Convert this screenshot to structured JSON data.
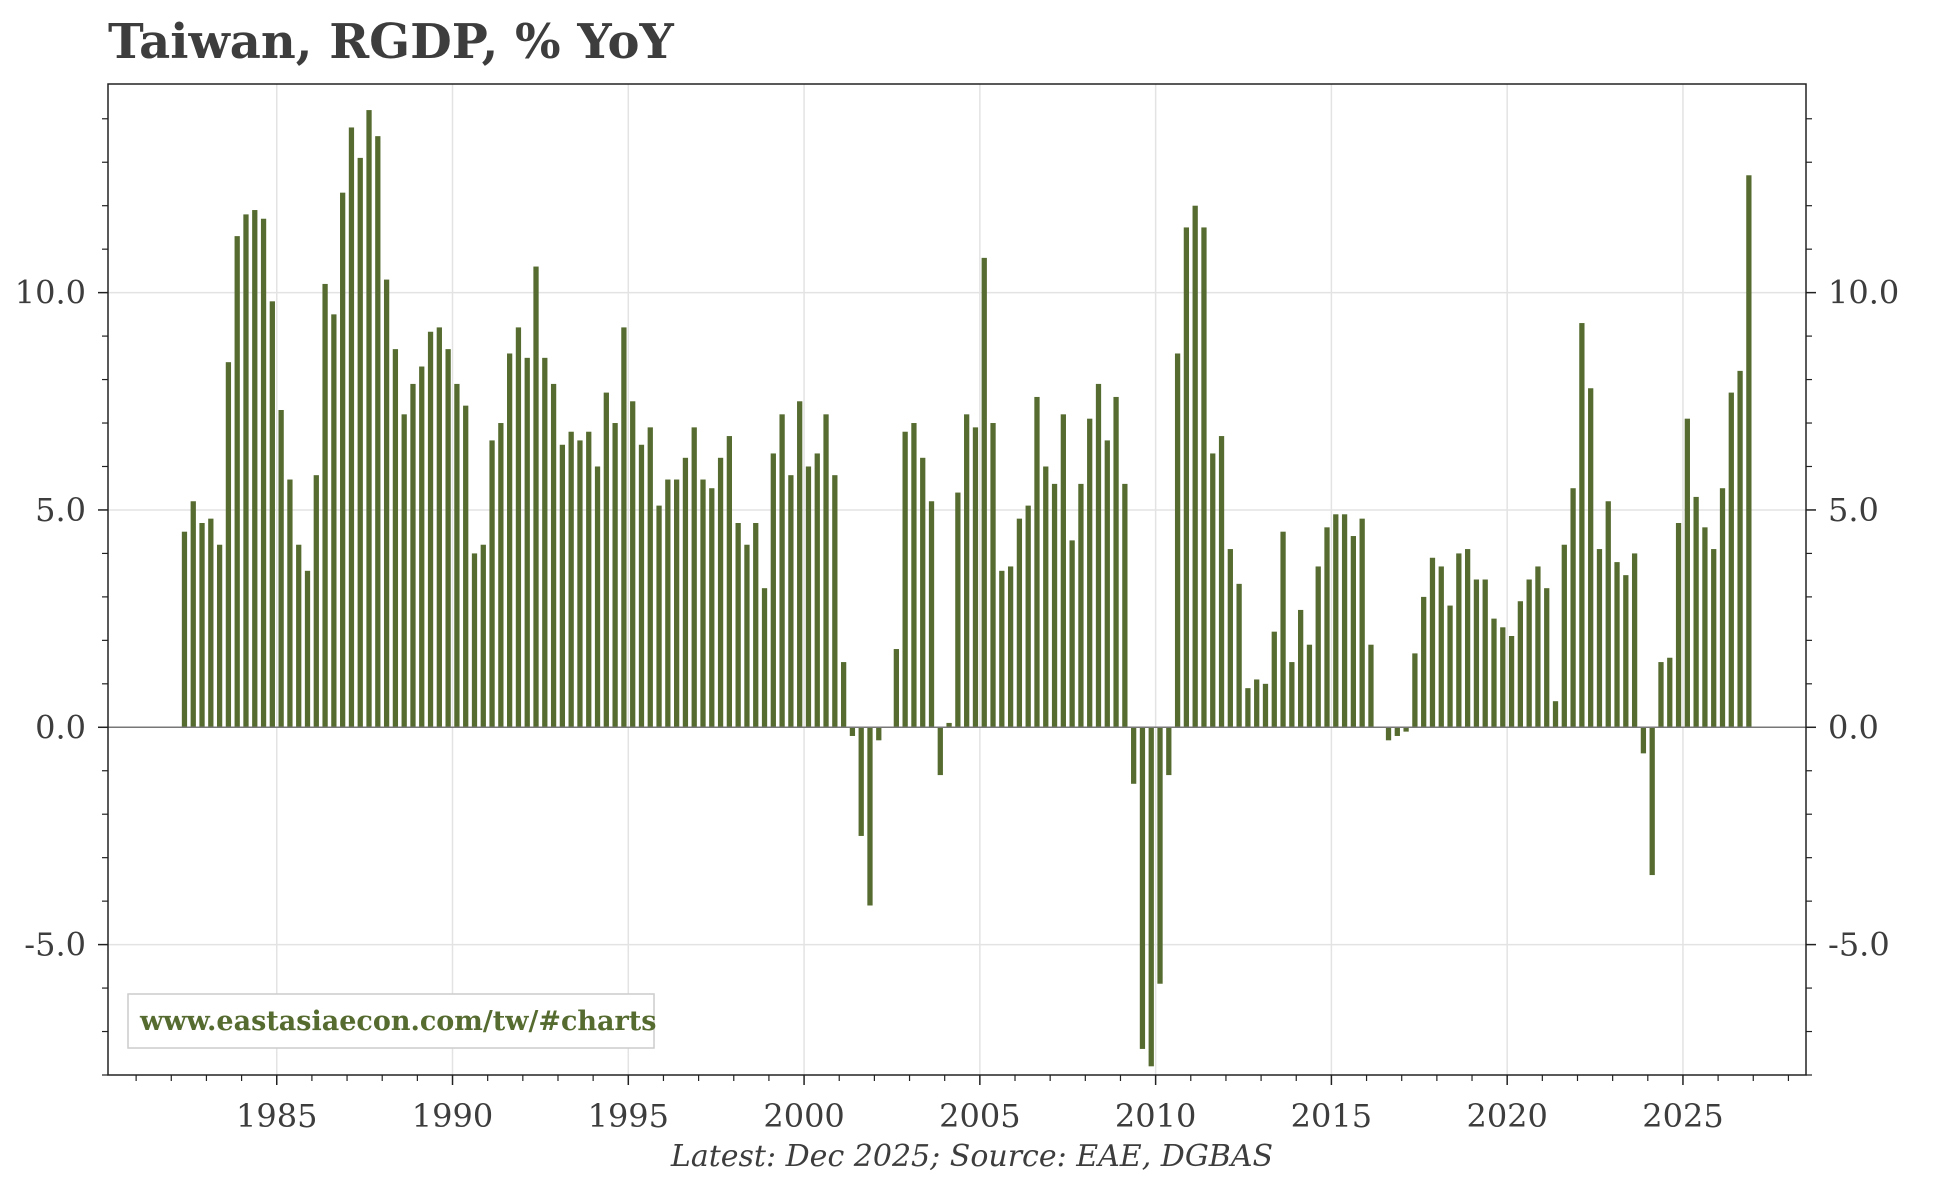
{
  "chart_data": {
    "type": "bar",
    "title": "Taiwan, RGDP, % YoY",
    "footnote": "Latest: Dec 2025; Source: EAE, DGBAS",
    "watermark": "www.eastasiaecon.com/tw/#charts",
    "bar_color": "#556b2f",
    "grid": true,
    "ylim": [
      -8.0,
      14.8
    ],
    "xlim": [
      1980.2,
      2028.5
    ],
    "y_ticks": [
      -5.0,
      0.0,
      5.0,
      10.0
    ],
    "y_tick_labels": [
      "-5.0",
      "0.0",
      "5.0",
      "10.0"
    ],
    "x_ticks": [
      1985,
      1990,
      1995,
      2000,
      2005,
      2010,
      2015,
      2020,
      2025
    ],
    "x_tick_labels": [
      "1985",
      "1990",
      "1995",
      "2000",
      "2005",
      "2010",
      "2015",
      "2020",
      "2025"
    ],
    "series": [
      {
        "name": "RGDP % YoY",
        "start_year": 1982,
        "start_quarter": 2,
        "frequency": "quarterly",
        "values": [
          4.5,
          5.2,
          4.7,
          4.8,
          4.2,
          8.4,
          11.3,
          11.8,
          11.9,
          11.7,
          9.8,
          7.3,
          5.7,
          4.2,
          3.6,
          5.8,
          10.2,
          9.5,
          12.3,
          13.8,
          13.1,
          14.2,
          13.6,
          10.3,
          8.7,
          7.2,
          7.9,
          8.3,
          9.1,
          9.2,
          8.7,
          7.9,
          7.4,
          4.0,
          4.2,
          6.6,
          7.0,
          8.6,
          9.2,
          8.5,
          10.6,
          8.5,
          7.9,
          6.5,
          6.8,
          6.6,
          6.8,
          6.0,
          7.7,
          7.0,
          9.2,
          7.5,
          6.5,
          6.9,
          5.1,
          5.7,
          5.7,
          6.2,
          6.9,
          5.7,
          5.5,
          6.2,
          6.7,
          4.7,
          4.2,
          4.7,
          3.2,
          6.3,
          7.2,
          5.8,
          7.5,
          6.0,
          6.3,
          7.2,
          5.8,
          1.5,
          -0.2,
          -2.5,
          -4.1,
          -0.3,
          0.0,
          1.8,
          6.8,
          7.0,
          6.2,
          5.2,
          -1.1,
          0.1,
          5.4,
          7.2,
          6.9,
          10.8,
          7.0,
          3.6,
          3.7,
          4.8,
          5.1,
          7.6,
          6.0,
          5.6,
          7.2,
          4.3,
          5.6,
          7.1,
          7.9,
          6.6,
          7.6,
          5.6,
          -1.3,
          -7.4,
          -7.8,
          -5.9,
          -1.1,
          8.6,
          11.5,
          12.0,
          11.5,
          6.3,
          6.7,
          4.1,
          3.3,
          0.9,
          1.1,
          1.0,
          2.2,
          4.5,
          1.5,
          2.7,
          1.9,
          3.7,
          4.6,
          4.9,
          4.9,
          4.4,
          4.8,
          1.9,
          0.0,
          -0.3,
          -0.2,
          -0.1,
          1.7,
          3.0,
          3.9,
          3.7,
          2.8,
          4.0,
          4.1,
          3.4,
          3.4,
          2.5,
          2.3,
          2.1,
          2.9,
          3.4,
          3.7,
          3.2,
          0.6,
          4.2,
          5.5,
          9.3,
          7.8,
          4.1,
          5.2,
          3.8,
          3.5,
          4.0,
          -0.6,
          -3.4,
          1.5,
          1.6,
          4.7,
          7.1,
          5.3,
          4.6,
          4.1,
          5.5,
          7.7,
          8.2,
          12.7
        ]
      }
    ]
  }
}
